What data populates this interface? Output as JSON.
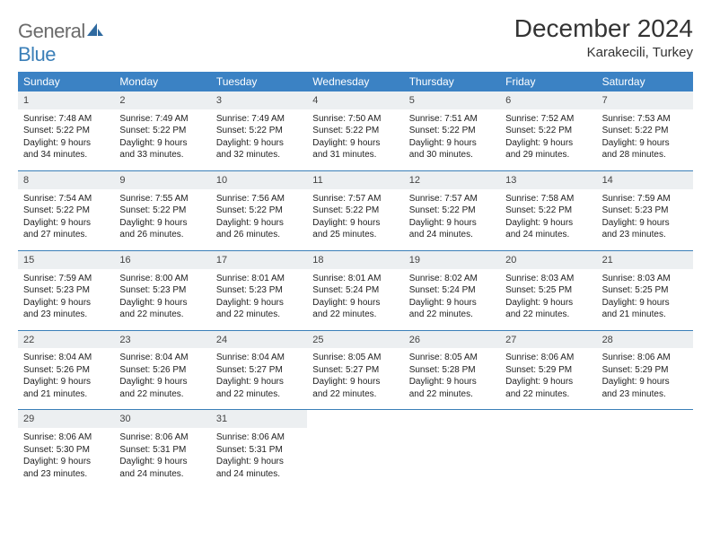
{
  "logo": {
    "part1": "General",
    "part2": "Blue"
  },
  "title": "December 2024",
  "location": "Karakecili, Turkey",
  "colors": {
    "header_bg": "#3b82c4",
    "header_text": "#ffffff",
    "daynum_bg": "#eceff1",
    "week_border": "#3b7fb8",
    "text": "#222222",
    "logo_gray": "#6b6b6b",
    "logo_blue": "#3b7fb8"
  },
  "day_names": [
    "Sunday",
    "Monday",
    "Tuesday",
    "Wednesday",
    "Thursday",
    "Friday",
    "Saturday"
  ],
  "weeks": [
    [
      {
        "num": "1",
        "sunrise": "Sunrise: 7:48 AM",
        "sunset": "Sunset: 5:22 PM",
        "d1": "Daylight: 9 hours",
        "d2": "and 34 minutes."
      },
      {
        "num": "2",
        "sunrise": "Sunrise: 7:49 AM",
        "sunset": "Sunset: 5:22 PM",
        "d1": "Daylight: 9 hours",
        "d2": "and 33 minutes."
      },
      {
        "num": "3",
        "sunrise": "Sunrise: 7:49 AM",
        "sunset": "Sunset: 5:22 PM",
        "d1": "Daylight: 9 hours",
        "d2": "and 32 minutes."
      },
      {
        "num": "4",
        "sunrise": "Sunrise: 7:50 AM",
        "sunset": "Sunset: 5:22 PM",
        "d1": "Daylight: 9 hours",
        "d2": "and 31 minutes."
      },
      {
        "num": "5",
        "sunrise": "Sunrise: 7:51 AM",
        "sunset": "Sunset: 5:22 PM",
        "d1": "Daylight: 9 hours",
        "d2": "and 30 minutes."
      },
      {
        "num": "6",
        "sunrise": "Sunrise: 7:52 AM",
        "sunset": "Sunset: 5:22 PM",
        "d1": "Daylight: 9 hours",
        "d2": "and 29 minutes."
      },
      {
        "num": "7",
        "sunrise": "Sunrise: 7:53 AM",
        "sunset": "Sunset: 5:22 PM",
        "d1": "Daylight: 9 hours",
        "d2": "and 28 minutes."
      }
    ],
    [
      {
        "num": "8",
        "sunrise": "Sunrise: 7:54 AM",
        "sunset": "Sunset: 5:22 PM",
        "d1": "Daylight: 9 hours",
        "d2": "and 27 minutes."
      },
      {
        "num": "9",
        "sunrise": "Sunrise: 7:55 AM",
        "sunset": "Sunset: 5:22 PM",
        "d1": "Daylight: 9 hours",
        "d2": "and 26 minutes."
      },
      {
        "num": "10",
        "sunrise": "Sunrise: 7:56 AM",
        "sunset": "Sunset: 5:22 PM",
        "d1": "Daylight: 9 hours",
        "d2": "and 26 minutes."
      },
      {
        "num": "11",
        "sunrise": "Sunrise: 7:57 AM",
        "sunset": "Sunset: 5:22 PM",
        "d1": "Daylight: 9 hours",
        "d2": "and 25 minutes."
      },
      {
        "num": "12",
        "sunrise": "Sunrise: 7:57 AM",
        "sunset": "Sunset: 5:22 PM",
        "d1": "Daylight: 9 hours",
        "d2": "and 24 minutes."
      },
      {
        "num": "13",
        "sunrise": "Sunrise: 7:58 AM",
        "sunset": "Sunset: 5:22 PM",
        "d1": "Daylight: 9 hours",
        "d2": "and 24 minutes."
      },
      {
        "num": "14",
        "sunrise": "Sunrise: 7:59 AM",
        "sunset": "Sunset: 5:23 PM",
        "d1": "Daylight: 9 hours",
        "d2": "and 23 minutes."
      }
    ],
    [
      {
        "num": "15",
        "sunrise": "Sunrise: 7:59 AM",
        "sunset": "Sunset: 5:23 PM",
        "d1": "Daylight: 9 hours",
        "d2": "and 23 minutes."
      },
      {
        "num": "16",
        "sunrise": "Sunrise: 8:00 AM",
        "sunset": "Sunset: 5:23 PM",
        "d1": "Daylight: 9 hours",
        "d2": "and 22 minutes."
      },
      {
        "num": "17",
        "sunrise": "Sunrise: 8:01 AM",
        "sunset": "Sunset: 5:23 PM",
        "d1": "Daylight: 9 hours",
        "d2": "and 22 minutes."
      },
      {
        "num": "18",
        "sunrise": "Sunrise: 8:01 AM",
        "sunset": "Sunset: 5:24 PM",
        "d1": "Daylight: 9 hours",
        "d2": "and 22 minutes."
      },
      {
        "num": "19",
        "sunrise": "Sunrise: 8:02 AM",
        "sunset": "Sunset: 5:24 PM",
        "d1": "Daylight: 9 hours",
        "d2": "and 22 minutes."
      },
      {
        "num": "20",
        "sunrise": "Sunrise: 8:03 AM",
        "sunset": "Sunset: 5:25 PM",
        "d1": "Daylight: 9 hours",
        "d2": "and 22 minutes."
      },
      {
        "num": "21",
        "sunrise": "Sunrise: 8:03 AM",
        "sunset": "Sunset: 5:25 PM",
        "d1": "Daylight: 9 hours",
        "d2": "and 21 minutes."
      }
    ],
    [
      {
        "num": "22",
        "sunrise": "Sunrise: 8:04 AM",
        "sunset": "Sunset: 5:26 PM",
        "d1": "Daylight: 9 hours",
        "d2": "and 21 minutes."
      },
      {
        "num": "23",
        "sunrise": "Sunrise: 8:04 AM",
        "sunset": "Sunset: 5:26 PM",
        "d1": "Daylight: 9 hours",
        "d2": "and 22 minutes."
      },
      {
        "num": "24",
        "sunrise": "Sunrise: 8:04 AM",
        "sunset": "Sunset: 5:27 PM",
        "d1": "Daylight: 9 hours",
        "d2": "and 22 minutes."
      },
      {
        "num": "25",
        "sunrise": "Sunrise: 8:05 AM",
        "sunset": "Sunset: 5:27 PM",
        "d1": "Daylight: 9 hours",
        "d2": "and 22 minutes."
      },
      {
        "num": "26",
        "sunrise": "Sunrise: 8:05 AM",
        "sunset": "Sunset: 5:28 PM",
        "d1": "Daylight: 9 hours",
        "d2": "and 22 minutes."
      },
      {
        "num": "27",
        "sunrise": "Sunrise: 8:06 AM",
        "sunset": "Sunset: 5:29 PM",
        "d1": "Daylight: 9 hours",
        "d2": "and 22 minutes."
      },
      {
        "num": "28",
        "sunrise": "Sunrise: 8:06 AM",
        "sunset": "Sunset: 5:29 PM",
        "d1": "Daylight: 9 hours",
        "d2": "and 23 minutes."
      }
    ],
    [
      {
        "num": "29",
        "sunrise": "Sunrise: 8:06 AM",
        "sunset": "Sunset: 5:30 PM",
        "d1": "Daylight: 9 hours",
        "d2": "and 23 minutes."
      },
      {
        "num": "30",
        "sunrise": "Sunrise: 8:06 AM",
        "sunset": "Sunset: 5:31 PM",
        "d1": "Daylight: 9 hours",
        "d2": "and 24 minutes."
      },
      {
        "num": "31",
        "sunrise": "Sunrise: 8:06 AM",
        "sunset": "Sunset: 5:31 PM",
        "d1": "Daylight: 9 hours",
        "d2": "and 24 minutes."
      },
      null,
      null,
      null,
      null
    ]
  ]
}
